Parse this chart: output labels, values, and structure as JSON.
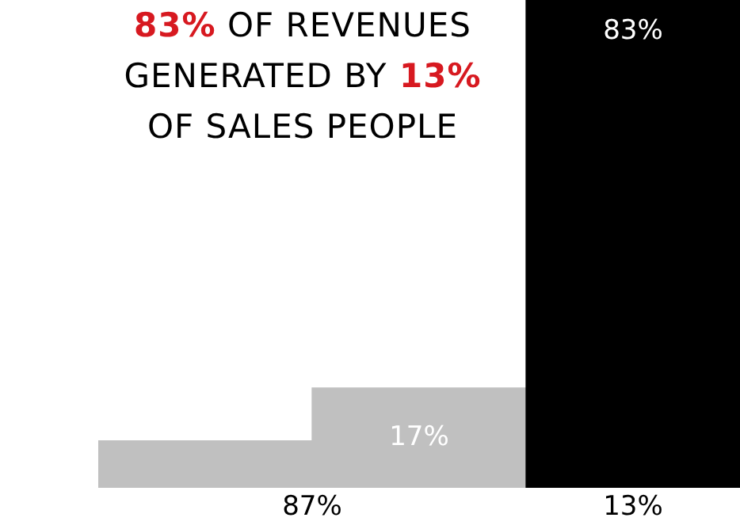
{
  "chart_data": {
    "type": "bar",
    "title": "83% OF REVENUES GENERATED BY 13% OF SALES PEOPLE",
    "categories": [
      null,
      null,
      null
    ],
    "values": [
      8,
      17,
      83
    ],
    "colors": [
      "#c0c0c0",
      "#c0c0c0",
      "#000000"
    ],
    "value_labels": [
      null,
      "17%",
      "83%"
    ],
    "annotations": [
      "87%",
      "13%"
    ]
  }
}
